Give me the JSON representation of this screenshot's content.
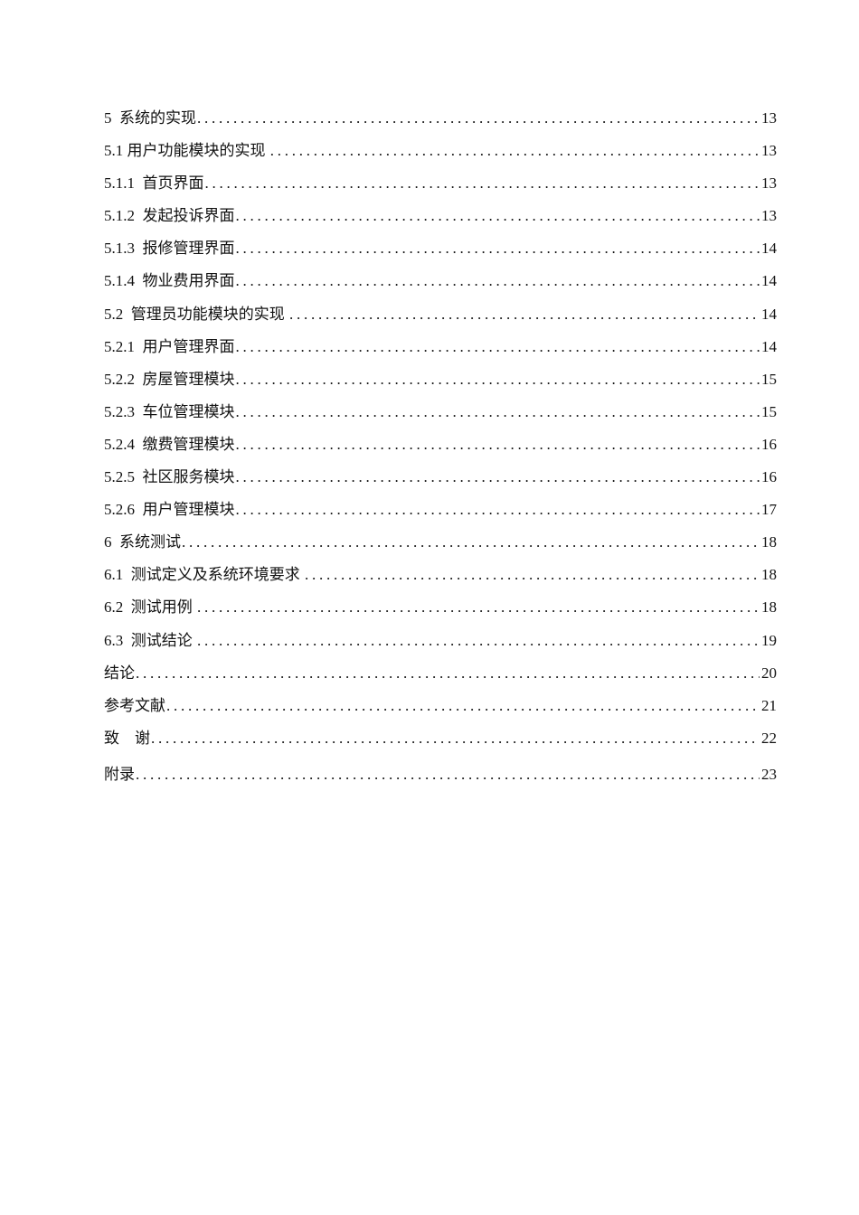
{
  "toc": [
    {
      "title": "5  系统的实现",
      "page": "13"
    },
    {
      "title": "5.1 用户功能模块的实现 ",
      "page": "13"
    },
    {
      "title": "5.1.1  首页界面",
      "page": "13"
    },
    {
      "title": "5.1.2  发起投诉界面",
      "page": "13"
    },
    {
      "title": "5.1.3  报修管理界面",
      "page": "14"
    },
    {
      "title": "5.1.4  物业费用界面",
      "page": "14"
    },
    {
      "title": "5.2  管理员功能模块的实现 ",
      "page": "14"
    },
    {
      "title": "5.2.1  用户管理界面",
      "page": "14"
    },
    {
      "title": "5.2.2  房屋管理模块",
      "page": "15"
    },
    {
      "title": "5.2.3  车位管理模块",
      "page": "15"
    },
    {
      "title": "5.2.4  缴费管理模块",
      "page": "16"
    },
    {
      "title": "5.2.5  社区服务模块",
      "page": "16"
    },
    {
      "title": "5.2.6  用户管理模块",
      "page": "17"
    },
    {
      "title": "6  系统测试",
      "page": "18"
    },
    {
      "title": "6.1  测试定义及系统环境要求 ",
      "page": "18"
    },
    {
      "title": "6.2  测试用例 ",
      "page": "18"
    },
    {
      "title": "6.3  测试结论 ",
      "page": "19"
    },
    {
      "title": "结论",
      "page": "20"
    },
    {
      "title": "参考文献",
      "page": "21"
    },
    {
      "title": "致    谢",
      "page": "22"
    },
    {
      "title": "附录",
      "page": "23"
    }
  ]
}
